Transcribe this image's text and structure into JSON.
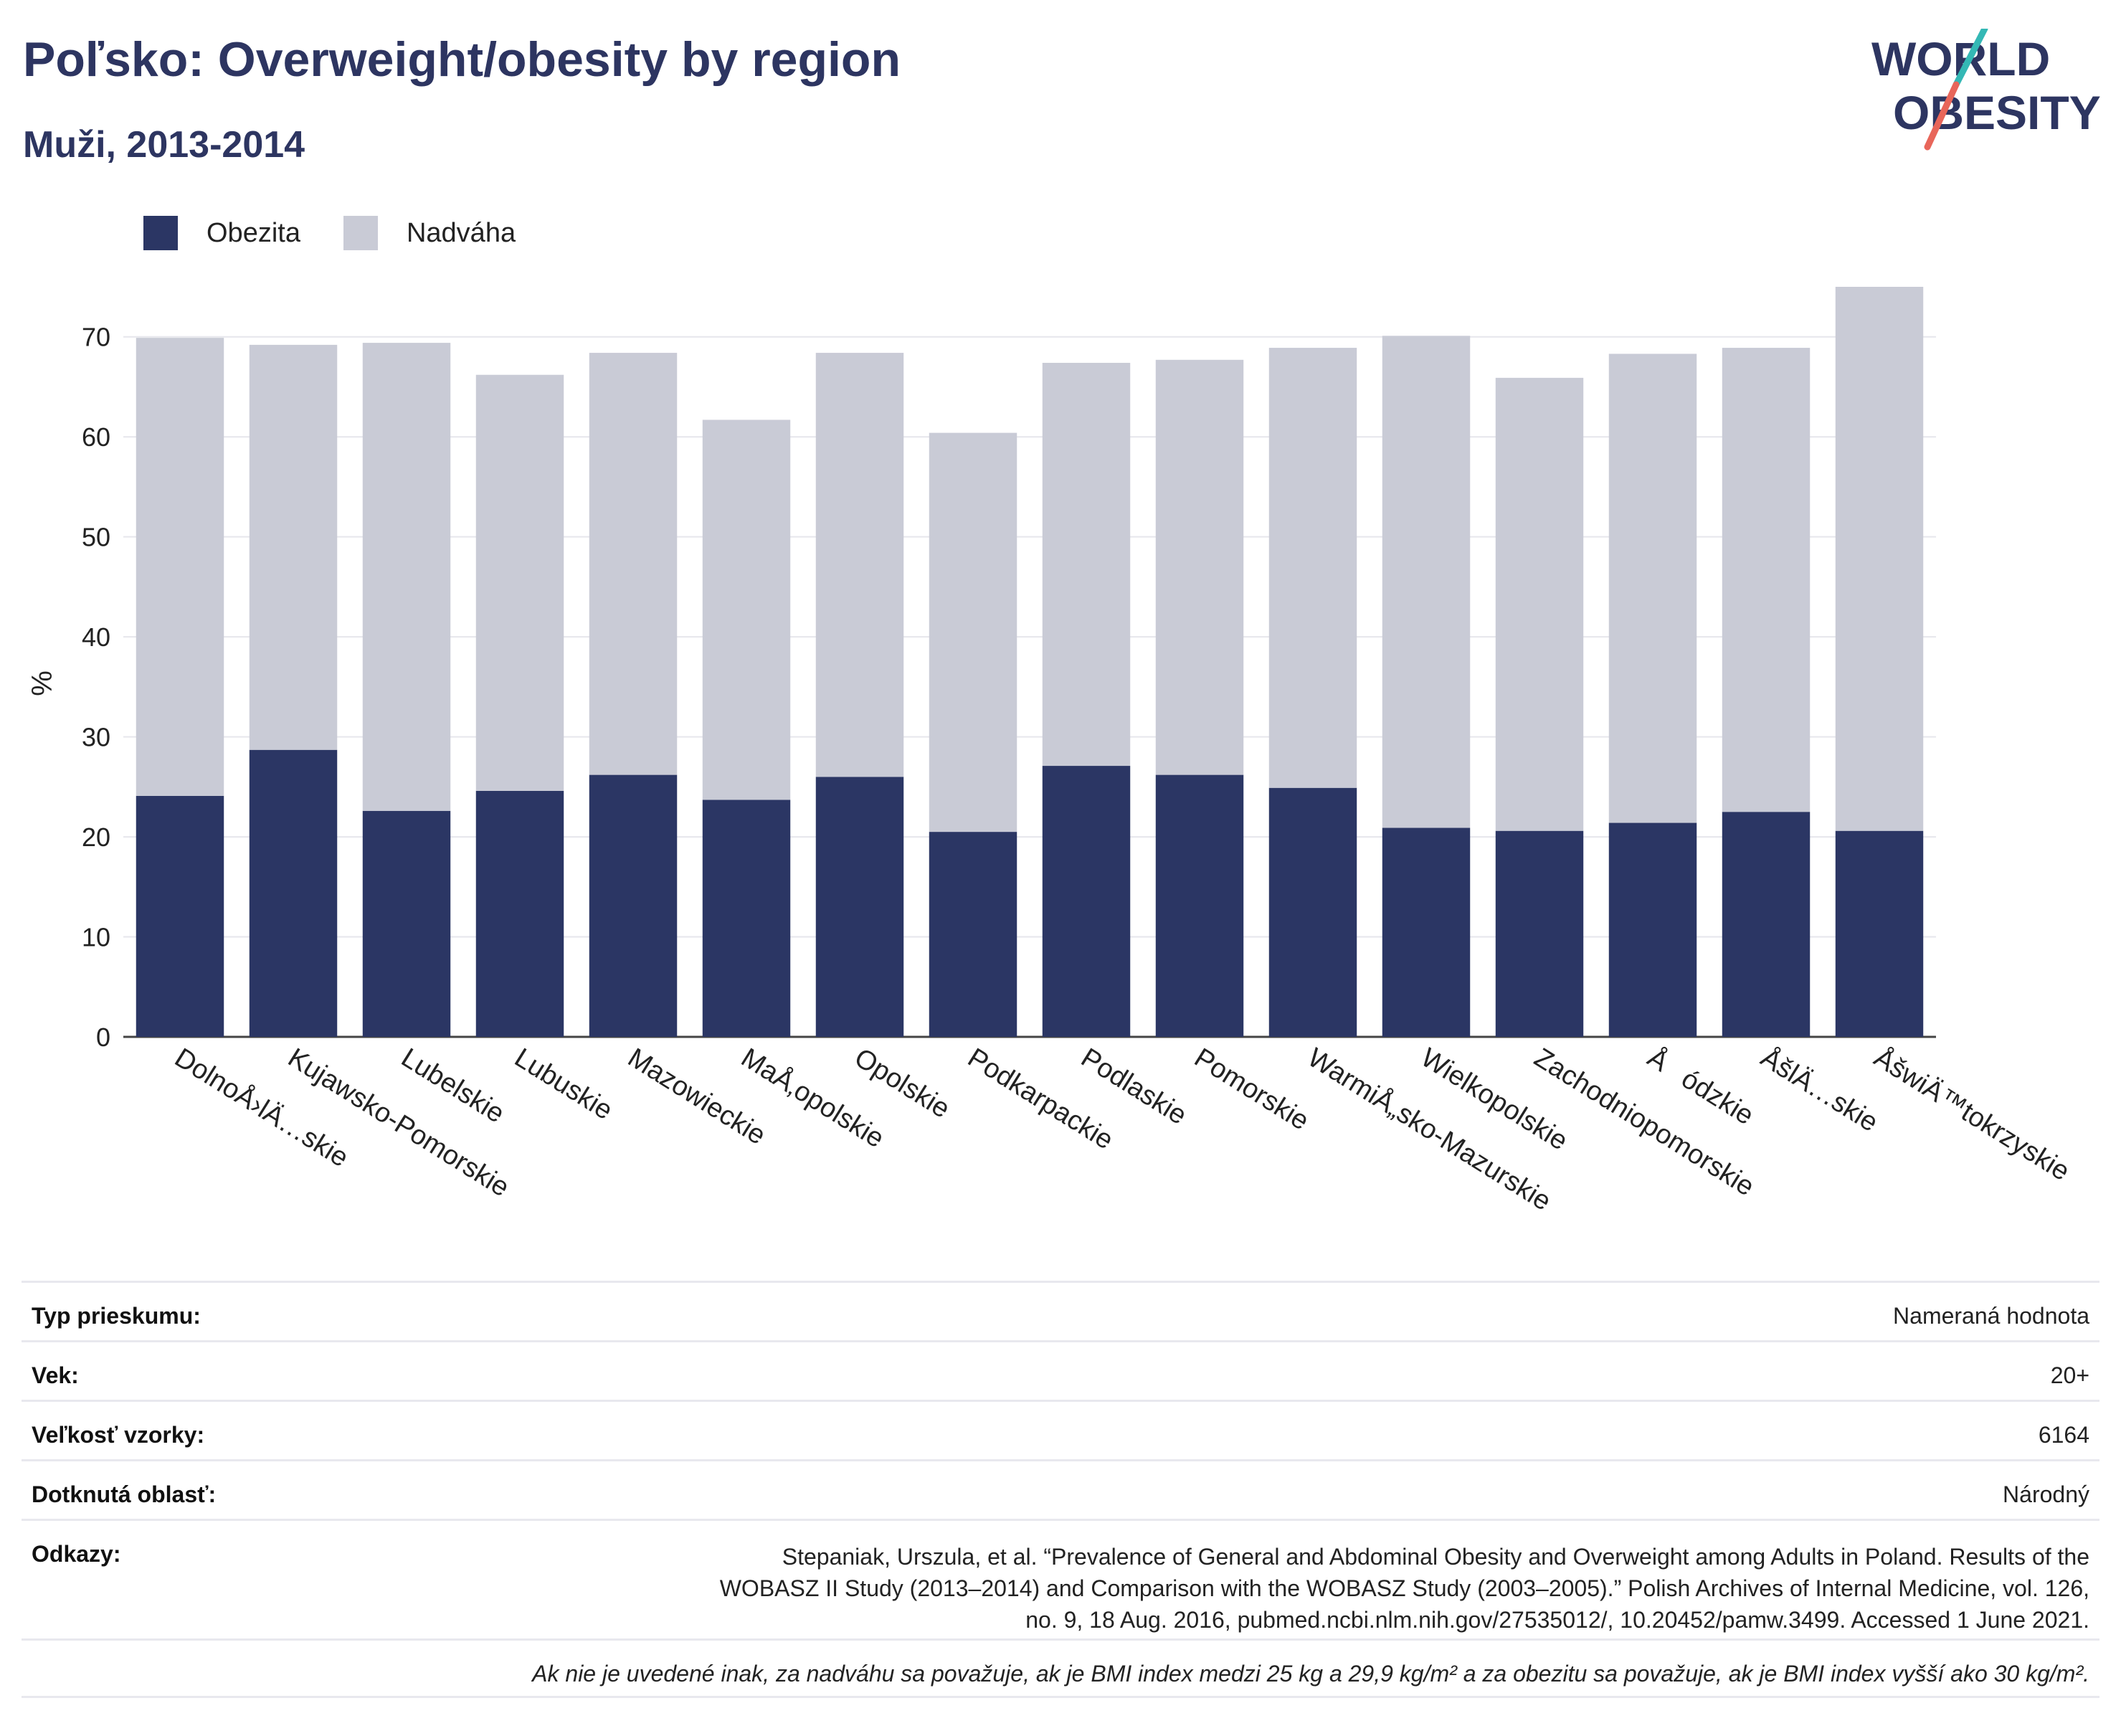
{
  "header": {
    "title": "Poľsko: Overweight/obesity by region",
    "subtitle": "Muži, 2013-2014",
    "logo_top": "WORLD",
    "logo_bottom": "OBESITY"
  },
  "colors": {
    "obesity": "#2b3664",
    "overweight": "#c9cbd6",
    "accent_red": "#e8665a",
    "accent_teal": "#34b8b5",
    "title": "#2d3561"
  },
  "chart_data": {
    "type": "bar",
    "stacked": true,
    "categories": [
      "DolnoÅ›lÄ…skie",
      "Kujawsko-Pomorskie",
      "Lubelskie",
      "Lubuskie",
      "Mazowieckie",
      "MaÅ‚opolskie",
      "Opolskie",
      "Podkarpackie",
      "Podlaskie",
      "Pomorskie",
      "WarmiÅ„sko-Mazurskie",
      "Wielkopolskie",
      "Zachodniopomorskie",
      "Åódzkie",
      "ÅšlÄ…skie",
      "ÅšwiÄ™tokrzyskie"
    ],
    "series": [
      {
        "name": "Obezita",
        "values": [
          24.1,
          28.7,
          22.6,
          24.6,
          26.2,
          23.7,
          26.0,
          20.5,
          27.1,
          26.2,
          24.9,
          20.9,
          20.6,
          21.4,
          22.5,
          20.6
        ]
      },
      {
        "name": "Nadváha",
        "values": [
          45.8,
          40.5,
          46.8,
          41.6,
          42.2,
          38.0,
          42.4,
          39.9,
          40.3,
          41.5,
          44.0,
          49.2,
          45.3,
          46.9,
          46.4,
          54.5
        ]
      }
    ],
    "ylabel": "%",
    "ylim": [
      0,
      75
    ],
    "yticks": [
      0,
      10,
      20,
      30,
      40,
      50,
      60,
      70
    ],
    "grid": true,
    "legend": "top-left"
  },
  "meta": {
    "survey_type_label": "Typ prieskumu:",
    "survey_type_value": "Nameraná hodnota",
    "age_label": "Vek:",
    "age_value": "20+",
    "sample_label": "Veľkosť vzorky:",
    "sample_value": "6164",
    "area_label": "Dotknutá oblasť:",
    "area_value": "Národný",
    "refs_label": "Odkazy:",
    "refs_line1": "Stepaniak, Urszula, et al. “Prevalence of General and Abdominal Obesity and Overweight among Adults in Poland. Results of the",
    "refs_line2": "WOBASZ II Study (2013–2014) and Comparison with the WOBASZ Study (2003–2005).” Polish Archives of Internal Medicine, vol. 126,",
    "refs_line3": "no. 9, 18 Aug. 2016, pubmed.ncbi.nlm.nih.gov/27535012/, 10.20452/pamw.3499. Accessed 1 June 2021.",
    "note": "Ak nie je uvedené inak, za nadváhu sa považuje, ak je BMI index medzi 25 kg a 29,9 kg/m² a za obezitu sa považuje, ak je BMI index vyšší ako 30 kg/m²."
  }
}
